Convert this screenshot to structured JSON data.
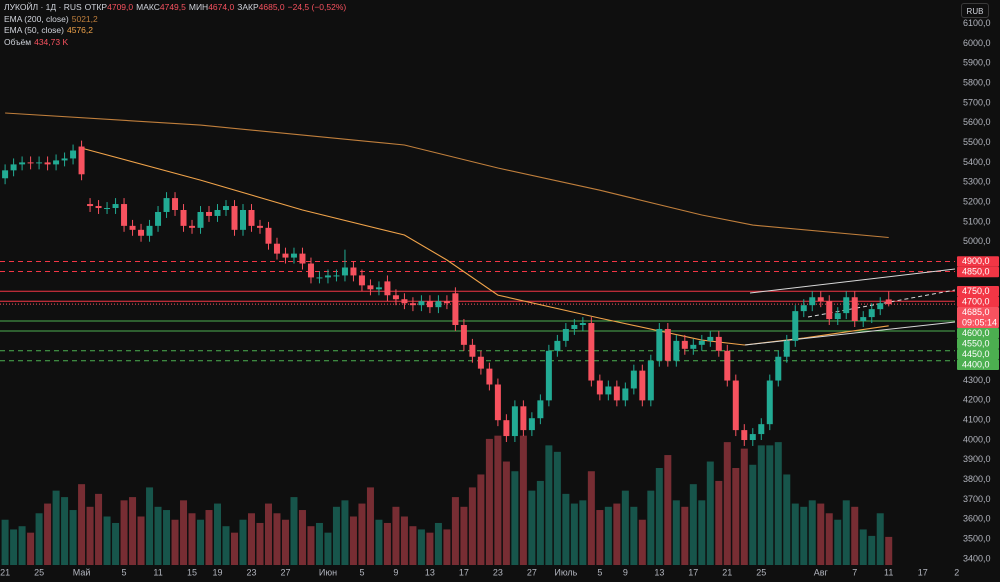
{
  "header": {
    "symbol": "ЛУКОЙЛ · 1Д · RUS",
    "fields": [
      {
        "label": "ОТКР",
        "value": "4709,0"
      },
      {
        "label": "МАКС",
        "value": "4749,5"
      },
      {
        "label": "МИН",
        "value": "4674,0"
      },
      {
        "label": "ЗАКР",
        "value": "4685,0"
      }
    ],
    "change": "−24,5 (−0,52%)"
  },
  "currency": "RUB",
  "chart_data": {
    "type": "candlestick",
    "up_color": "#22ab94",
    "down_color": "#f7525f",
    "open": [
      5320,
      5360,
      5390,
      5400,
      5395,
      5400,
      5390,
      5410,
      5420,
      5480,
      5190,
      5180,
      5170,
      5170,
      5190,
      5080,
      5060,
      5030,
      5080,
      5150,
      5220,
      5160,
      5080,
      5070,
      5150,
      5130,
      5160,
      5180,
      5060,
      5160,
      5080,
      5070,
      4990,
      4940,
      4920,
      4940,
      4890,
      4820,
      4820,
      4830,
      4830,
      4870,
      4830,
      4780,
      4760,
      4800,
      4730,
      4710,
      4690,
      4680,
      4700,
      4670,
      4700,
      4740,
      4580,
      4480,
      4420,
      4360,
      4280,
      4100,
      4020,
      4170,
      4050,
      4110,
      4200,
      4450,
      4500,
      4560,
      4580,
      4590,
      4300,
      4230,
      4270,
      4200,
      4260,
      4350,
      4200,
      4400,
      4560,
      4400,
      4500,
      4460,
      4480,
      4500,
      4520,
      4450,
      4300,
      4050,
      4000,
      4030,
      4080,
      4300,
      4420,
      4500,
      4650,
      4680,
      4720,
      4700,
      4610,
      4640,
      4720,
      4600,
      4620,
      4660,
      4709
    ],
    "high": [
      5390,
      5420,
      5430,
      5430,
      5430,
      5430,
      5440,
      5450,
      5490,
      5510,
      5220,
      5210,
      5200,
      5220,
      5220,
      5110,
      5090,
      5110,
      5180,
      5250,
      5250,
      5190,
      5110,
      5180,
      5180,
      5190,
      5210,
      5210,
      5190,
      5190,
      5110,
      5100,
      5020,
      4970,
      4970,
      4970,
      4920,
      4850,
      4860,
      4860,
      4960,
      4900,
      4860,
      4810,
      4800,
      4830,
      4760,
      4740,
      4720,
      4730,
      4730,
      4730,
      4730,
      4770,
      4610,
      4510,
      4450,
      4390,
      4310,
      4130,
      4200,
      4200,
      4140,
      4230,
      4480,
      4530,
      4590,
      4610,
      4620,
      4620,
      4330,
      4300,
      4300,
      4290,
      4380,
      4380,
      4430,
      4590,
      4590,
      4530,
      4530,
      4510,
      4530,
      4550,
      4550,
      4480,
      4330,
      4080,
      4060,
      4110,
      4330,
      4450,
      4530,
      4680,
      4710,
      4750,
      4750,
      4730,
      4670,
      4750,
      4750,
      4650,
      4690,
      4720,
      4749.5
    ],
    "low": [
      5290,
      5330,
      5360,
      5365,
      5365,
      5360,
      5360,
      5380,
      5390,
      5310,
      5150,
      5140,
      5140,
      5140,
      5050,
      5030,
      5000,
      5000,
      5050,
      5120,
      5130,
      5050,
      5040,
      5040,
      5100,
      5100,
      5130,
      5030,
      5030,
      5050,
      5040,
      4960,
      4910,
      4890,
      4890,
      4860,
      4790,
      4790,
      4790,
      4800,
      4800,
      4800,
      4750,
      4730,
      4730,
      4700,
      4680,
      4660,
      4650,
      4650,
      4640,
      4640,
      4660,
      4550,
      4450,
      4390,
      4330,
      4250,
      4070,
      3990,
      3990,
      4020,
      4020,
      4080,
      4170,
      4420,
      4470,
      4530,
      4550,
      4270,
      4200,
      4200,
      4170,
      4170,
      4230,
      4170,
      4170,
      4370,
      4370,
      4370,
      4430,
      4430,
      4450,
      4470,
      4420,
      4270,
      4020,
      3970,
      3970,
      4000,
      4050,
      4270,
      4390,
      4470,
      4620,
      4650,
      4670,
      4580,
      4580,
      4610,
      4570,
      4570,
      4590,
      4630,
      4674
    ],
    "close": [
      5360,
      5390,
      5400,
      5395,
      5400,
      5390,
      5410,
      5420,
      5460,
      5340,
      5180,
      5170,
      5170,
      5190,
      5080,
      5060,
      5030,
      5080,
      5150,
      5220,
      5160,
      5080,
      5070,
      5150,
      5130,
      5160,
      5180,
      5060,
      5160,
      5080,
      5070,
      4990,
      4940,
      4920,
      4940,
      4890,
      4820,
      4820,
      4830,
      4830,
      4870,
      4830,
      4780,
      4760,
      4770,
      4730,
      4710,
      4690,
      4680,
      4700,
      4670,
      4700,
      4690,
      4580,
      4480,
      4420,
      4360,
      4280,
      4100,
      4020,
      4170,
      4050,
      4110,
      4200,
      4450,
      4500,
      4560,
      4580,
      4590,
      4300,
      4230,
      4270,
      4200,
      4260,
      4350,
      4200,
      4400,
      4560,
      4400,
      4500,
      4460,
      4480,
      4500,
      4520,
      4450,
      4300,
      4050,
      4000,
      4030,
      4080,
      4300,
      4420,
      4500,
      4650,
      4680,
      4720,
      4700,
      4610,
      4640,
      4720,
      4600,
      4620,
      4660,
      4690,
      4685
    ],
    "volume": [
      700,
      550,
      600,
      500,
      800,
      950,
      1150,
      1050,
      850,
      1250,
      900,
      1100,
      750,
      650,
      1000,
      1050,
      750,
      1200,
      900,
      850,
      700,
      1000,
      800,
      700,
      850,
      950,
      600,
      500,
      700,
      800,
      650,
      950,
      800,
      700,
      1050,
      850,
      600,
      650,
      500,
      900,
      1000,
      750,
      950,
      1200,
      700,
      650,
      900,
      750,
      600,
      550,
      500,
      650,
      550,
      1050,
      900,
      1200,
      1400,
      1950,
      2000,
      1600,
      1450,
      2000,
      1150,
      1300,
      1850,
      1750,
      1100,
      950,
      1000,
      1450,
      850,
      900,
      950,
      1150,
      900,
      700,
      1150,
      1500,
      1700,
      1000,
      900,
      1250,
      1000,
      1600,
      1300,
      1900,
      1500,
      1800,
      1550,
      1850,
      1850,
      1900,
      1400,
      950,
      900,
      1000,
      950,
      800,
      700,
      1000,
      900,
      550,
      450,
      800,
      434.73
    ],
    "volume_name": "Объём",
    "volume_label": "434,73 K",
    "volume_ylim": [
      0,
      3000
    ],
    "series": [
      {
        "name": "EMA (200, close)",
        "color": "#c07f3c",
        "value_label": "5021,2",
        "x": [
          0,
          23,
          47,
          58,
          70,
          82,
          88,
          104
        ],
        "values": [
          5649,
          5588,
          5488,
          5372,
          5260,
          5135,
          5084,
          5021.2
        ]
      },
      {
        "name": "EMA (50, close)",
        "color": "#f0a34a",
        "value_label": "4576,2",
        "x": [
          9,
          23,
          35,
          47,
          52,
          58,
          70,
          82,
          87,
          94,
          104
        ],
        "values": [
          5472,
          5311,
          5160,
          5034,
          4908,
          4731,
          4615,
          4504,
          4479,
          4514,
          4576.2
        ]
      }
    ],
    "levels": [
      {
        "value": 4900,
        "label": "4900,0",
        "color": "#f23645",
        "style": "dashed"
      },
      {
        "value": 4850,
        "label": "4850,0",
        "color": "#f23645",
        "style": "dashed"
      },
      {
        "value": 4750,
        "label": "4750,0",
        "color": "#f23645",
        "style": "solid"
      },
      {
        "value": 4700,
        "label": "4700,0",
        "color": "#f23645",
        "style": "solid"
      },
      {
        "value": 4600,
        "label": "4600,0",
        "color": "#4caf50",
        "style": "solid"
      },
      {
        "value": 4550,
        "label": "4550,0",
        "color": "#4caf50",
        "style": "solid"
      },
      {
        "value": 4450,
        "label": "4450,0",
        "color": "#4caf50",
        "style": "dashed"
      },
      {
        "value": 4400,
        "label": "4400,0",
        "color": "#4caf50",
        "style": "dashed"
      }
    ],
    "last_price_label": "4685,0",
    "countdown": "09:05:14",
    "grid": false,
    "xlim": [
      -0.6,
      111.8
    ],
    "xticks": [
      {
        "value": 0,
        "label": "21"
      },
      {
        "value": 4,
        "label": "25"
      },
      {
        "value": 9,
        "label": "Май"
      },
      {
        "value": 14,
        "label": "5"
      },
      {
        "value": 18,
        "label": "11"
      },
      {
        "value": 22,
        "label": "15"
      },
      {
        "value": 25,
        "label": "19"
      },
      {
        "value": 29,
        "label": "23"
      },
      {
        "value": 33,
        "label": "27"
      },
      {
        "value": 38,
        "label": "Июн"
      },
      {
        "value": 42,
        "label": "5"
      },
      {
        "value": 46,
        "label": "9"
      },
      {
        "value": 50,
        "label": "13"
      },
      {
        "value": 54,
        "label": "17"
      },
      {
        "value": 58,
        "label": "23"
      },
      {
        "value": 62,
        "label": "27"
      },
      {
        "value": 66,
        "label": "Июль"
      },
      {
        "value": 70,
        "label": "5"
      },
      {
        "value": 73,
        "label": "9"
      },
      {
        "value": 77,
        "label": "13"
      },
      {
        "value": 81,
        "label": "17"
      },
      {
        "value": 85,
        "label": "21"
      },
      {
        "value": 89,
        "label": "25"
      },
      {
        "value": 96,
        "label": "Авг"
      },
      {
        "value": 100,
        "label": "7"
      },
      {
        "value": 104,
        "label": "11"
      },
      {
        "value": 108,
        "label": "17"
      },
      {
        "value": 112,
        "label": "2"
      }
    ],
    "ylim": [
      3284,
      6219
    ],
    "yticks": [
      {
        "value": 3400,
        "label": "3400,0"
      },
      {
        "value": 3500,
        "label": "3500,0"
      },
      {
        "value": 3600,
        "label": "3600,0"
      },
      {
        "value": 3700,
        "label": "3700,0"
      },
      {
        "value": 3800,
        "label": "3800,0"
      },
      {
        "value": 3900,
        "label": "3900,0"
      },
      {
        "value": 4000,
        "label": "4000,0"
      },
      {
        "value": 4100,
        "label": "4100,0"
      },
      {
        "value": 4200,
        "label": "4200,0"
      },
      {
        "value": 4300,
        "label": "4300,0"
      },
      {
        "value": 5000,
        "label": "5000,0"
      },
      {
        "value": 5100,
        "label": "5100,0"
      },
      {
        "value": 5200,
        "label": "5200,0"
      },
      {
        "value": 5300,
        "label": "5300,0"
      },
      {
        "value": 5400,
        "label": "5400,0"
      },
      {
        "value": 5500,
        "label": "5500,0"
      },
      {
        "value": 5600,
        "label": "5600,0"
      },
      {
        "value": 5700,
        "label": "5700,0"
      },
      {
        "value": 5800,
        "label": "5800,0"
      },
      {
        "value": 5900,
        "label": "5900,0"
      },
      {
        "value": 6000,
        "label": "6000,0"
      },
      {
        "value": 6100,
        "label": "6100,0"
      }
    ]
  }
}
